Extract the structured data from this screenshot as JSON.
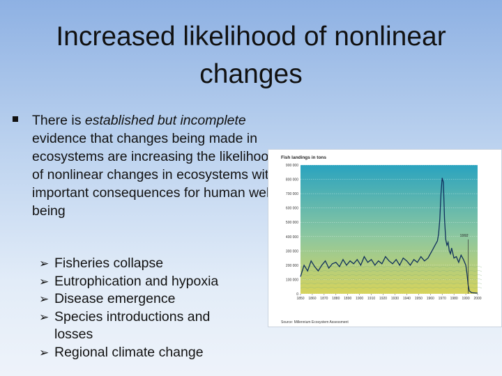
{
  "slide": {
    "title": "Increased likelihood of nonlinear changes",
    "bullet": {
      "before": "There is ",
      "emphasis": "established but incomplete",
      "after": " evidence that changes being made in ecosystems are increasing the likelihood of nonlinear changes in ecosystems with important consequences for human well-being"
    },
    "sub_items": [
      "Fisheries collapse",
      "Eutrophication and hypoxia",
      "Disease emergence",
      "Species introductions and losses",
      "Regional climate change"
    ]
  },
  "chart_data": {
    "type": "line",
    "title": "Fish landings in tons",
    "source": "Source: Millennium Ecosystem Assessment",
    "ylim": [
      0,
      900000
    ],
    "yticks": [
      "0",
      "100 000",
      "200 000",
      "300 000",
      "400 000",
      "500 000",
      "600 000",
      "700 000",
      "800 000",
      "900 000"
    ],
    "xlim": [
      1850,
      2000
    ],
    "xticks": [
      "1850",
      "1860",
      "1870",
      "1880",
      "1890",
      "1900",
      "1910",
      "1920",
      "1930",
      "1940",
      "1950",
      "1960",
      "1970",
      "1980",
      "1990",
      "2000"
    ],
    "annotation": {
      "label": "1992",
      "x": 1992
    },
    "background_top": "#2aa3bf",
    "background_bottom": "#d6d35c",
    "line_color": "#0f2f5c",
    "series": [
      {
        "x": [
          1850,
          1853,
          1856,
          1859,
          1862,
          1865,
          1868,
          1871,
          1874,
          1877,
          1880,
          1883,
          1886,
          1889,
          1892,
          1895,
          1898,
          1901,
          1904,
          1907,
          1910,
          1913,
          1916,
          1919,
          1922,
          1925,
          1928,
          1931,
          1934,
          1937,
          1940,
          1943,
          1946,
          1949,
          1952,
          1955,
          1958,
          1960,
          1962,
          1964,
          1966,
          1967,
          1968,
          1969,
          1970,
          1971,
          1972,
          1973,
          1974,
          1975,
          1976,
          1977,
          1978,
          1980,
          1982,
          1984,
          1986,
          1988,
          1990,
          1991,
          1992,
          1993,
          1995,
          2000
        ],
        "y": [
          120000,
          200000,
          160000,
          230000,
          190000,
          160000,
          200000,
          230000,
          180000,
          210000,
          220000,
          190000,
          240000,
          200000,
          230000,
          210000,
          240000,
          200000,
          260000,
          220000,
          240000,
          200000,
          230000,
          210000,
          260000,
          230000,
          210000,
          240000,
          200000,
          250000,
          230000,
          200000,
          240000,
          220000,
          260000,
          230000,
          250000,
          280000,
          310000,
          340000,
          370000,
          420000,
          520000,
          700000,
          810000,
          780000,
          520000,
          380000,
          340000,
          360000,
          300000,
          280000,
          320000,
          250000,
          260000,
          220000,
          270000,
          240000,
          200000,
          140000,
          60000,
          20000,
          8000,
          5000
        ]
      }
    ]
  }
}
